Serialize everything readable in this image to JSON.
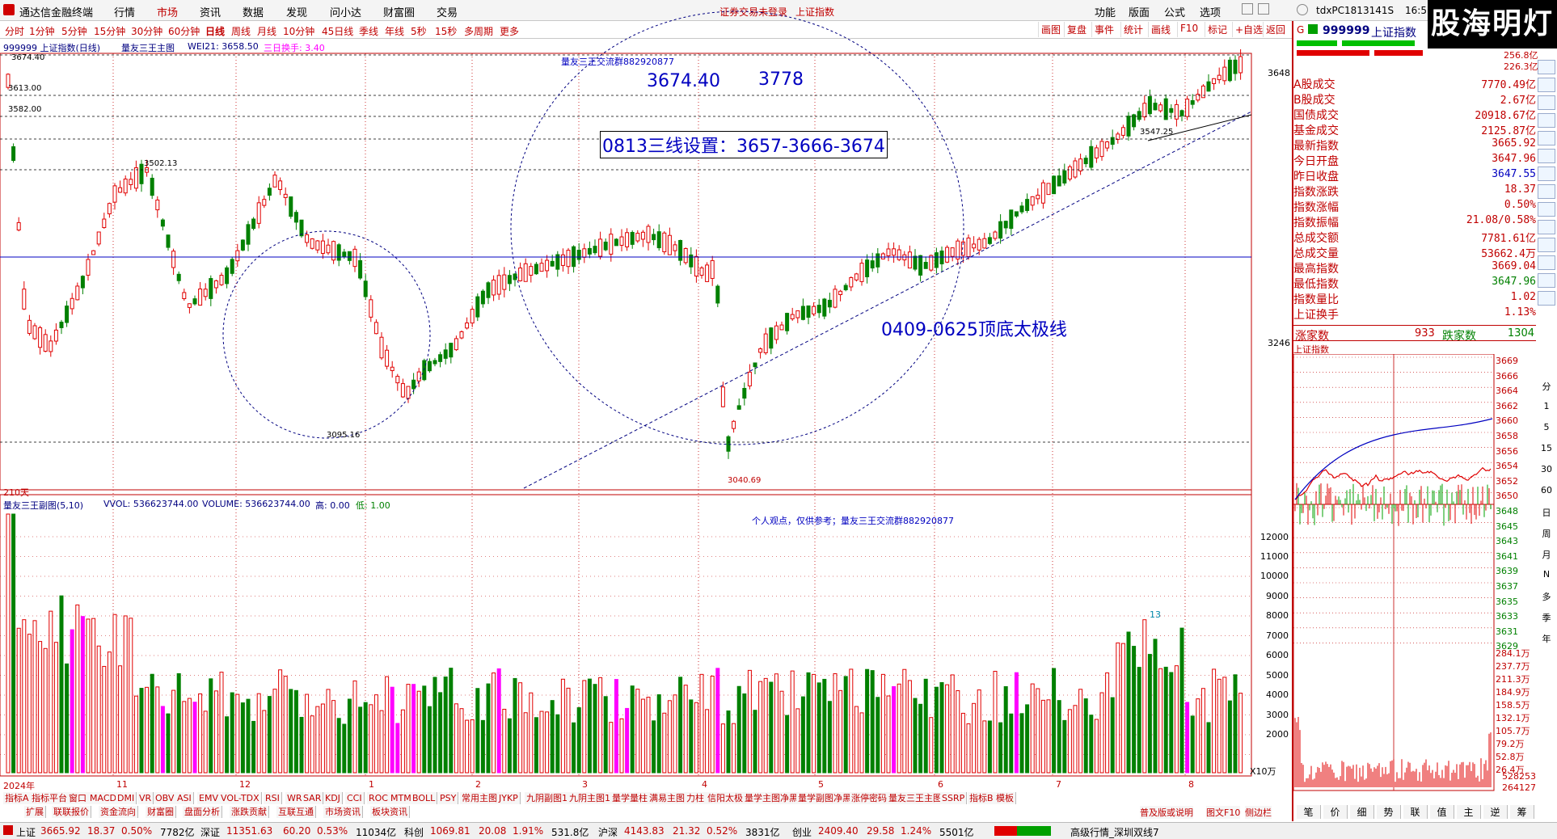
{
  "app": {
    "title": "通达信金融终端",
    "menus": [
      "行情",
      "市场",
      "资讯",
      "数据",
      "发现",
      "问小达",
      "财富圈",
      "交易"
    ],
    "active_menu": "市场",
    "notice": "证券交易未登录",
    "notice2": "上证指数",
    "right_menus": [
      "功能",
      "版面",
      "公式",
      "选项"
    ],
    "machine": "tdxPC1813141S",
    "time": "16:5",
    "brand": "股海明灯"
  },
  "periods": [
    "分时",
    "1分钟",
    "5分钟",
    "15分钟",
    "30分钟",
    "60分钟",
    "日线",
    "周线",
    "月线",
    "10分钟",
    "45日线",
    "季线",
    "年线",
    "5秒",
    "15秒",
    "多周期",
    "更多"
  ],
  "toolbar": [
    "画图",
    "复盘",
    "事件",
    "统计",
    "画线",
    "F10",
    "标记",
    "+自选",
    "返回"
  ],
  "info": {
    "code_name": "999999 上证指数(日线)",
    "indicator": "量友三王主图",
    "wei": "WEI21: 3658.50",
    "turnover": "三日换手: 3.40"
  },
  "annotations": {
    "group_label": "量友三王交流群882920877",
    "price1": "3674.40",
    "price2": "3778",
    "three_lines": "0813三线设置：3657-3666-3674",
    "taiji": "0409-0625顶底太极线",
    "l3674": "3674.40",
    "l3613": "3613.00",
    "l3582": "3582.00",
    "l3502": "3502.13",
    "l3547": "3547.25",
    "l3095": "3095.16",
    "l3040": "3040.69",
    "days": "210天",
    "sub_title": "量友三王副图(5,10)",
    "vvol": "VVOL: 536623744.00",
    "volume": "VOLUME: 536623744.00",
    "high": "高: 0.00",
    "low": "低: 1.00",
    "opinion": "个人观点，仅供参考；量友三王交流群882920877",
    "vol_mark": "13",
    "unit": "X10万"
  },
  "price_axis": [
    "3648",
    "3246"
  ],
  "vol_axis": [
    "12000",
    "11000",
    "10000",
    "9000",
    "8000",
    "7000",
    "6000",
    "5000",
    "4000",
    "3000",
    "2000"
  ],
  "time_axis": [
    "2024年",
    "11",
    "12",
    "2024年",
    "1",
    "2",
    "3",
    "4",
    "5",
    "6",
    "7",
    "8"
  ],
  "right_panel": {
    "index_code": "999999",
    "index_name": "上证指数",
    "top_vals": [
      "256.8亿",
      "226.3亿"
    ],
    "rows": [
      {
        "label": "A股成交",
        "value": "7770.49亿"
      },
      {
        "label": "B股成交",
        "value": "2.67亿"
      },
      {
        "label": "国债成交",
        "value": "20918.67亿"
      },
      {
        "label": "基金成交",
        "value": "2125.87亿"
      },
      {
        "label": "最新指数",
        "value": "3665.92"
      },
      {
        "label": "今日开盘",
        "value": "3647.96"
      },
      {
        "label": "昨日收盘",
        "value": "3647.55"
      },
      {
        "label": "指数涨跌",
        "value": "18.37"
      },
      {
        "label": "指数涨幅",
        "value": "0.50%"
      },
      {
        "label": "指数振幅",
        "value": "21.08/0.58%"
      },
      {
        "label": "总成交额",
        "value": "7781.61亿"
      },
      {
        "label": "总成交量",
        "value": "53662.4万"
      },
      {
        "label": "最高指数",
        "value": "3669.04"
      },
      {
        "label": "最低指数",
        "value": "3647.96"
      },
      {
        "label": "指数量比",
        "value": "1.02"
      },
      {
        "label": "上证换手",
        "value": "1.13%"
      }
    ],
    "up_label": "涨家数",
    "up_count": "933",
    "down_label": "跌家数",
    "down_count": "1304",
    "intraday_title": "上证指数",
    "intraday_axis": [
      "3669",
      "3666",
      "3664",
      "3662",
      "3660",
      "3658",
      "3656",
      "3654",
      "3652",
      "3650",
      "3648",
      "3645",
      "3643",
      "3641",
      "3639",
      "3637",
      "3635",
      "3633",
      "3631",
      "3629"
    ],
    "intraday_vol_axis": [
      "284.1万",
      "237.7万",
      "211.3万",
      "184.9万",
      "158.5万",
      "132.1万",
      "105.7万",
      "79.2万",
      "52.8万",
      "26.4万"
    ],
    "vol_axis_bottom": [
      "528253",
      "264127"
    ],
    "bottom_tabs": [
      "笔",
      "价",
      "细",
      "势",
      "联",
      "值",
      "主",
      "逆",
      "筹"
    ]
  },
  "vertical_tools": [
    "分",
    "1",
    "5",
    "15",
    "30",
    "60",
    "日",
    "周",
    "月",
    "N",
    "多",
    "季",
    "年"
  ],
  "bottom_tabs_row1": [
    "指标A",
    "指标平台",
    "窗口",
    "MACD",
    "DMI",
    "VR",
    "OBV",
    "ASI",
    "EMV",
    "VOL-TDX",
    "RSI",
    "WR",
    "SAR",
    "KDJ",
    "CCI",
    "ROC",
    "MTM",
    "BOLL",
    "PSY",
    "常用主图",
    "JYKP",
    "九阴副图1",
    "九阴主图1",
    "量学量柱",
    "满易主图",
    "力柱",
    "信阳太极",
    "量学主图净黑",
    "量学副图净黑",
    "涨停密码",
    "量友三王主图",
    "SSRP",
    "指标B",
    "模板"
  ],
  "bottom_tabs_row2": [
    "扩展",
    "联联报价",
    "资金流向",
    "财富圈",
    "盘面分析",
    "涨跌贡献",
    "互联互通",
    "市场资讯",
    "板块资讯"
  ],
  "bottom_right": [
    "高级行情_深圳双线7",
    "普及版或说明",
    "图文F10",
    "侧边栏"
  ],
  "status": {
    "sh_label": "上证",
    "sh_val": "3665.92",
    "sh_chg": "18.37",
    "sh_pct": "0.50%",
    "sh_amt": "7782亿",
    "sz_label": "深证",
    "sz_val": "11351.63",
    "sz_chg": "60.20",
    "sz_pct": "0.53%",
    "sz_amt": "11034亿",
    "kc_label": "科创",
    "kc_val": "1069.81",
    "kc_chg": "20.08",
    "kc_pct": "1.91%",
    "kc_amt": "531.8亿",
    "hs_label": "沪深",
    "hs_val": "4143.83",
    "hs_chg": "21.32",
    "hs_pct": "0.52%",
    "hs_amt": "3831亿",
    "cy_label": "创业",
    "cy_val": "2409.40",
    "cy_chg": "29.58",
    "cy_pct": "1.24%",
    "cy_amt": "5501亿"
  },
  "colors": {
    "up": "#e00000",
    "down": "#008000",
    "blue": "#0000c0",
    "magenta": "#ff00ff"
  }
}
